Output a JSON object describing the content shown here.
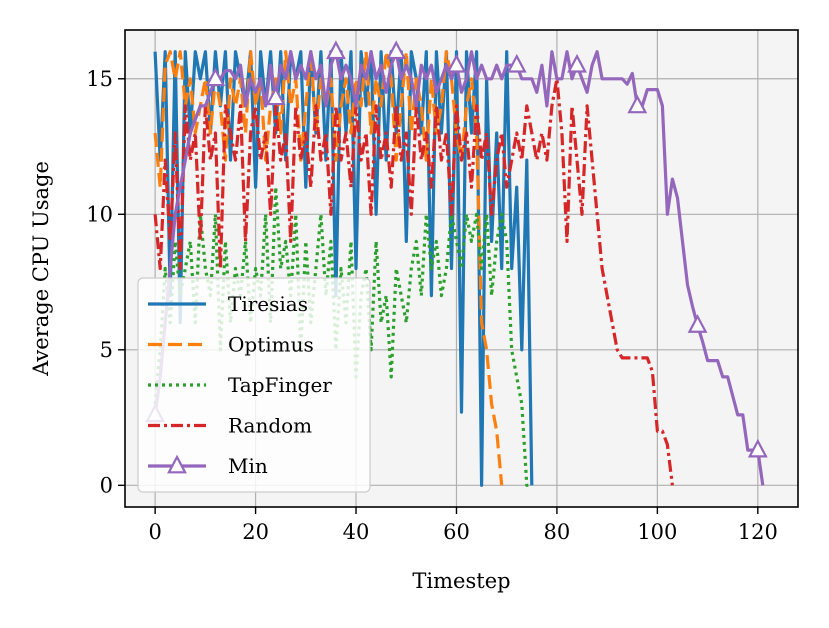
{
  "chart_data": {
    "type": "line",
    "title": "",
    "xlabel": "Timestep",
    "ylabel": "Average CPU Usage",
    "xlim": [
      -6,
      128
    ],
    "ylim": [
      -0.8,
      16.8
    ],
    "xticks": [
      0,
      20,
      40,
      60,
      80,
      100,
      120
    ],
    "yticks": [
      0,
      5,
      10,
      15
    ],
    "grid": true,
    "legend_position": "lower-left",
    "series": [
      {
        "name": "Tiresias",
        "color": "#1f77b4",
        "style": "solid",
        "x": [
          0,
          1,
          2,
          3,
          4,
          5,
          6,
          7,
          8,
          9,
          10,
          11,
          12,
          13,
          14,
          15,
          16,
          17,
          18,
          19,
          20,
          21,
          22,
          23,
          24,
          25,
          26,
          27,
          28,
          29,
          30,
          31,
          32,
          33,
          34,
          35,
          36,
          37,
          38,
          39,
          40,
          41,
          42,
          43,
          44,
          45,
          46,
          47,
          48,
          49,
          50,
          51,
          52,
          53,
          54,
          55,
          56,
          57,
          58,
          59,
          60,
          61,
          62,
          63,
          64,
          65,
          66,
          67,
          68,
          69,
          70,
          71,
          72,
          73,
          74,
          75
        ],
        "y": [
          16,
          12,
          16,
          7,
          16,
          6,
          16,
          13,
          16,
          15,
          16,
          13,
          16,
          14,
          16,
          12,
          16,
          15,
          14,
          16,
          11,
          16,
          14,
          16,
          13,
          16,
          12,
          16,
          15,
          16,
          11,
          16,
          13,
          16,
          12,
          16,
          7,
          16,
          13,
          16,
          8,
          16,
          14,
          16,
          10,
          16,
          12,
          16,
          13,
          16,
          9,
          16,
          15,
          13,
          16,
          7,
          16,
          13,
          16,
          8,
          16,
          2.7,
          16,
          13,
          16,
          0,
          15,
          9,
          13,
          8,
          16,
          8,
          11,
          5,
          12,
          0
        ]
      },
      {
        "name": "Optimus",
        "color": "#ff7f0e",
        "style": "dashed",
        "x": [
          0,
          1,
          2,
          3,
          4,
          5,
          6,
          7,
          8,
          9,
          10,
          11,
          12,
          13,
          14,
          15,
          16,
          17,
          18,
          19,
          20,
          21,
          22,
          23,
          24,
          25,
          26,
          27,
          28,
          29,
          30,
          31,
          32,
          33,
          34,
          35,
          36,
          37,
          38,
          39,
          40,
          41,
          42,
          43,
          44,
          45,
          46,
          47,
          48,
          49,
          50,
          51,
          52,
          53,
          54,
          55,
          56,
          57,
          58,
          59,
          60,
          61,
          62,
          63,
          64,
          65,
          66,
          67,
          68,
          69
        ],
        "y": [
          13,
          11,
          15.5,
          16,
          15,
          16,
          14,
          15,
          13,
          14,
          15,
          13,
          15,
          14,
          12,
          15,
          14,
          15,
          13,
          16,
          14,
          15,
          12,
          14,
          15,
          13,
          16,
          14,
          15,
          12,
          14,
          16,
          13,
          15,
          14,
          15,
          12,
          14,
          15,
          13,
          15,
          14,
          16,
          13,
          15,
          14,
          16,
          15,
          12,
          14,
          16,
          13,
          15,
          14,
          12,
          15,
          13,
          14,
          16,
          15,
          13,
          12,
          14,
          15,
          13,
          6,
          5,
          3,
          2,
          0
        ]
      },
      {
        "name": "TapFinger",
        "color": "#2ca02c",
        "style": "dotted",
        "x": [
          0,
          1,
          2,
          3,
          4,
          5,
          6,
          7,
          8,
          9,
          10,
          11,
          12,
          13,
          14,
          15,
          16,
          17,
          18,
          19,
          20,
          21,
          22,
          23,
          24,
          25,
          26,
          27,
          28,
          29,
          30,
          31,
          32,
          33,
          34,
          35,
          36,
          37,
          38,
          39,
          40,
          41,
          42,
          43,
          44,
          45,
          46,
          47,
          48,
          49,
          50,
          51,
          52,
          53,
          54,
          55,
          56,
          57,
          58,
          59,
          60,
          61,
          62,
          63,
          64,
          65,
          66,
          67,
          68,
          69,
          70,
          71,
          72,
          73,
          74,
          75
        ],
        "y": [
          3,
          5,
          8,
          6,
          9,
          7,
          8,
          9,
          6,
          10,
          8,
          7,
          10,
          5,
          9,
          6,
          8,
          7,
          9,
          6,
          8,
          7,
          10,
          6,
          11,
          8,
          9,
          7,
          10,
          5,
          9,
          6,
          8,
          10,
          7,
          9,
          5,
          8,
          6,
          9,
          4,
          7,
          8,
          5,
          9,
          6,
          7,
          4,
          8,
          7,
          6,
          8,
          9,
          7,
          10,
          8,
          9,
          7,
          8,
          10,
          9,
          8,
          10,
          9,
          10,
          8,
          10,
          7,
          9,
          10,
          9,
          5,
          4,
          3,
          0,
          0
        ]
      },
      {
        "name": "Random",
        "color": "#d62728",
        "style": "dashdot",
        "x": [
          0,
          1,
          2,
          3,
          4,
          5,
          6,
          7,
          8,
          9,
          10,
          11,
          12,
          13,
          14,
          15,
          16,
          17,
          18,
          19,
          20,
          21,
          22,
          23,
          24,
          25,
          26,
          27,
          28,
          29,
          30,
          31,
          32,
          33,
          34,
          35,
          36,
          37,
          38,
          39,
          40,
          41,
          42,
          43,
          44,
          45,
          46,
          47,
          48,
          49,
          50,
          51,
          52,
          53,
          54,
          55,
          56,
          57,
          58,
          59,
          60,
          61,
          62,
          63,
          64,
          65,
          66,
          67,
          68,
          69,
          70,
          71,
          72,
          73,
          74,
          75,
          76,
          77,
          78,
          79,
          80,
          81,
          82,
          83,
          84,
          85,
          86,
          87,
          88,
          89,
          90,
          91,
          92,
          93,
          94,
          95,
          96,
          97,
          98,
          99,
          100,
          101,
          102,
          103
        ],
        "y": [
          10,
          8,
          12,
          9,
          13,
          8,
          14,
          12,
          13,
          9,
          14,
          12,
          13,
          8,
          14,
          13,
          12,
          14,
          9,
          13,
          14,
          12,
          13,
          10,
          14,
          12,
          13,
          9,
          14,
          12,
          13,
          11,
          14,
          12,
          13,
          10,
          14,
          12,
          13,
          11,
          14,
          12,
          13,
          10,
          14,
          12,
          13,
          11,
          14,
          12,
          13,
          10,
          14,
          12,
          13,
          11,
          14,
          12,
          13,
          10,
          14,
          12,
          13,
          11,
          14,
          12,
          13,
          10,
          12,
          13,
          11,
          12,
          13,
          12,
          14,
          13,
          12,
          13,
          12,
          14,
          15,
          13,
          9,
          14,
          12,
          10,
          14,
          12,
          10,
          8,
          7,
          6,
          5,
          4.7,
          4.7,
          4.7,
          4.7,
          4.7,
          4.7,
          4.2,
          2,
          2,
          1.5,
          0
        ]
      },
      {
        "name": "Min",
        "color": "#9467bd",
        "style": "solid",
        "marker": "triangle",
        "x": [
          0,
          1,
          2,
          3,
          4,
          5,
          6,
          7,
          8,
          9,
          10,
          11,
          12,
          13,
          14,
          15,
          16,
          17,
          18,
          19,
          20,
          21,
          22,
          23,
          24,
          25,
          26,
          27,
          28,
          29,
          30,
          31,
          32,
          33,
          34,
          35,
          36,
          37,
          38,
          39,
          40,
          41,
          42,
          43,
          44,
          45,
          46,
          47,
          48,
          49,
          50,
          51,
          52,
          53,
          54,
          55,
          56,
          57,
          58,
          59,
          60,
          61,
          62,
          63,
          64,
          65,
          66,
          67,
          68,
          69,
          70,
          71,
          72,
          73,
          74,
          75,
          76,
          77,
          78,
          79,
          80,
          81,
          82,
          83,
          84,
          85,
          86,
          87,
          88,
          89,
          90,
          91,
          92,
          93,
          94,
          95,
          96,
          97,
          98,
          99,
          100,
          101,
          102,
          103,
          104,
          105,
          106,
          107,
          108,
          109,
          110,
          111,
          112,
          113,
          114,
          115,
          116,
          117,
          118,
          119,
          120,
          121
        ],
        "y": [
          2.6,
          4,
          6,
          8,
          10,
          11,
          12,
          13,
          13.5,
          14,
          14,
          14.5,
          15,
          15,
          15.3,
          15.3,
          15,
          15.5,
          14,
          15,
          14.5,
          15,
          14,
          15.5,
          14.3,
          15.5,
          15,
          16,
          15,
          15.5,
          15,
          16,
          15,
          15.5,
          14,
          15.5,
          16,
          15,
          15.5,
          15,
          14,
          15.5,
          15,
          16,
          15,
          15.5,
          14.5,
          15.5,
          16,
          15,
          15.5,
          15,
          14,
          15.5,
          15,
          15.5,
          14.5,
          15,
          15.5,
          15,
          15.5,
          14.5,
          15,
          16,
          15,
          15.5,
          15,
          15,
          15.5,
          15,
          15.5,
          15.5,
          15.5,
          15,
          15,
          15,
          14.5,
          15.5,
          14,
          16,
          15,
          15,
          16,
          15,
          15.5,
          15,
          14.5,
          15.5,
          16,
          15,
          15,
          15,
          15,
          15,
          14.8,
          15.2,
          14,
          14,
          14.6,
          14.6,
          14.6,
          14,
          10,
          11.3,
          10.6,
          9,
          7.4,
          6.6,
          5.9,
          5.3,
          4.6,
          4.6,
          4.6,
          4,
          4,
          3.3,
          2.6,
          2.6,
          1.3,
          1.3,
          1.3,
          0
        ]
      }
    ]
  }
}
